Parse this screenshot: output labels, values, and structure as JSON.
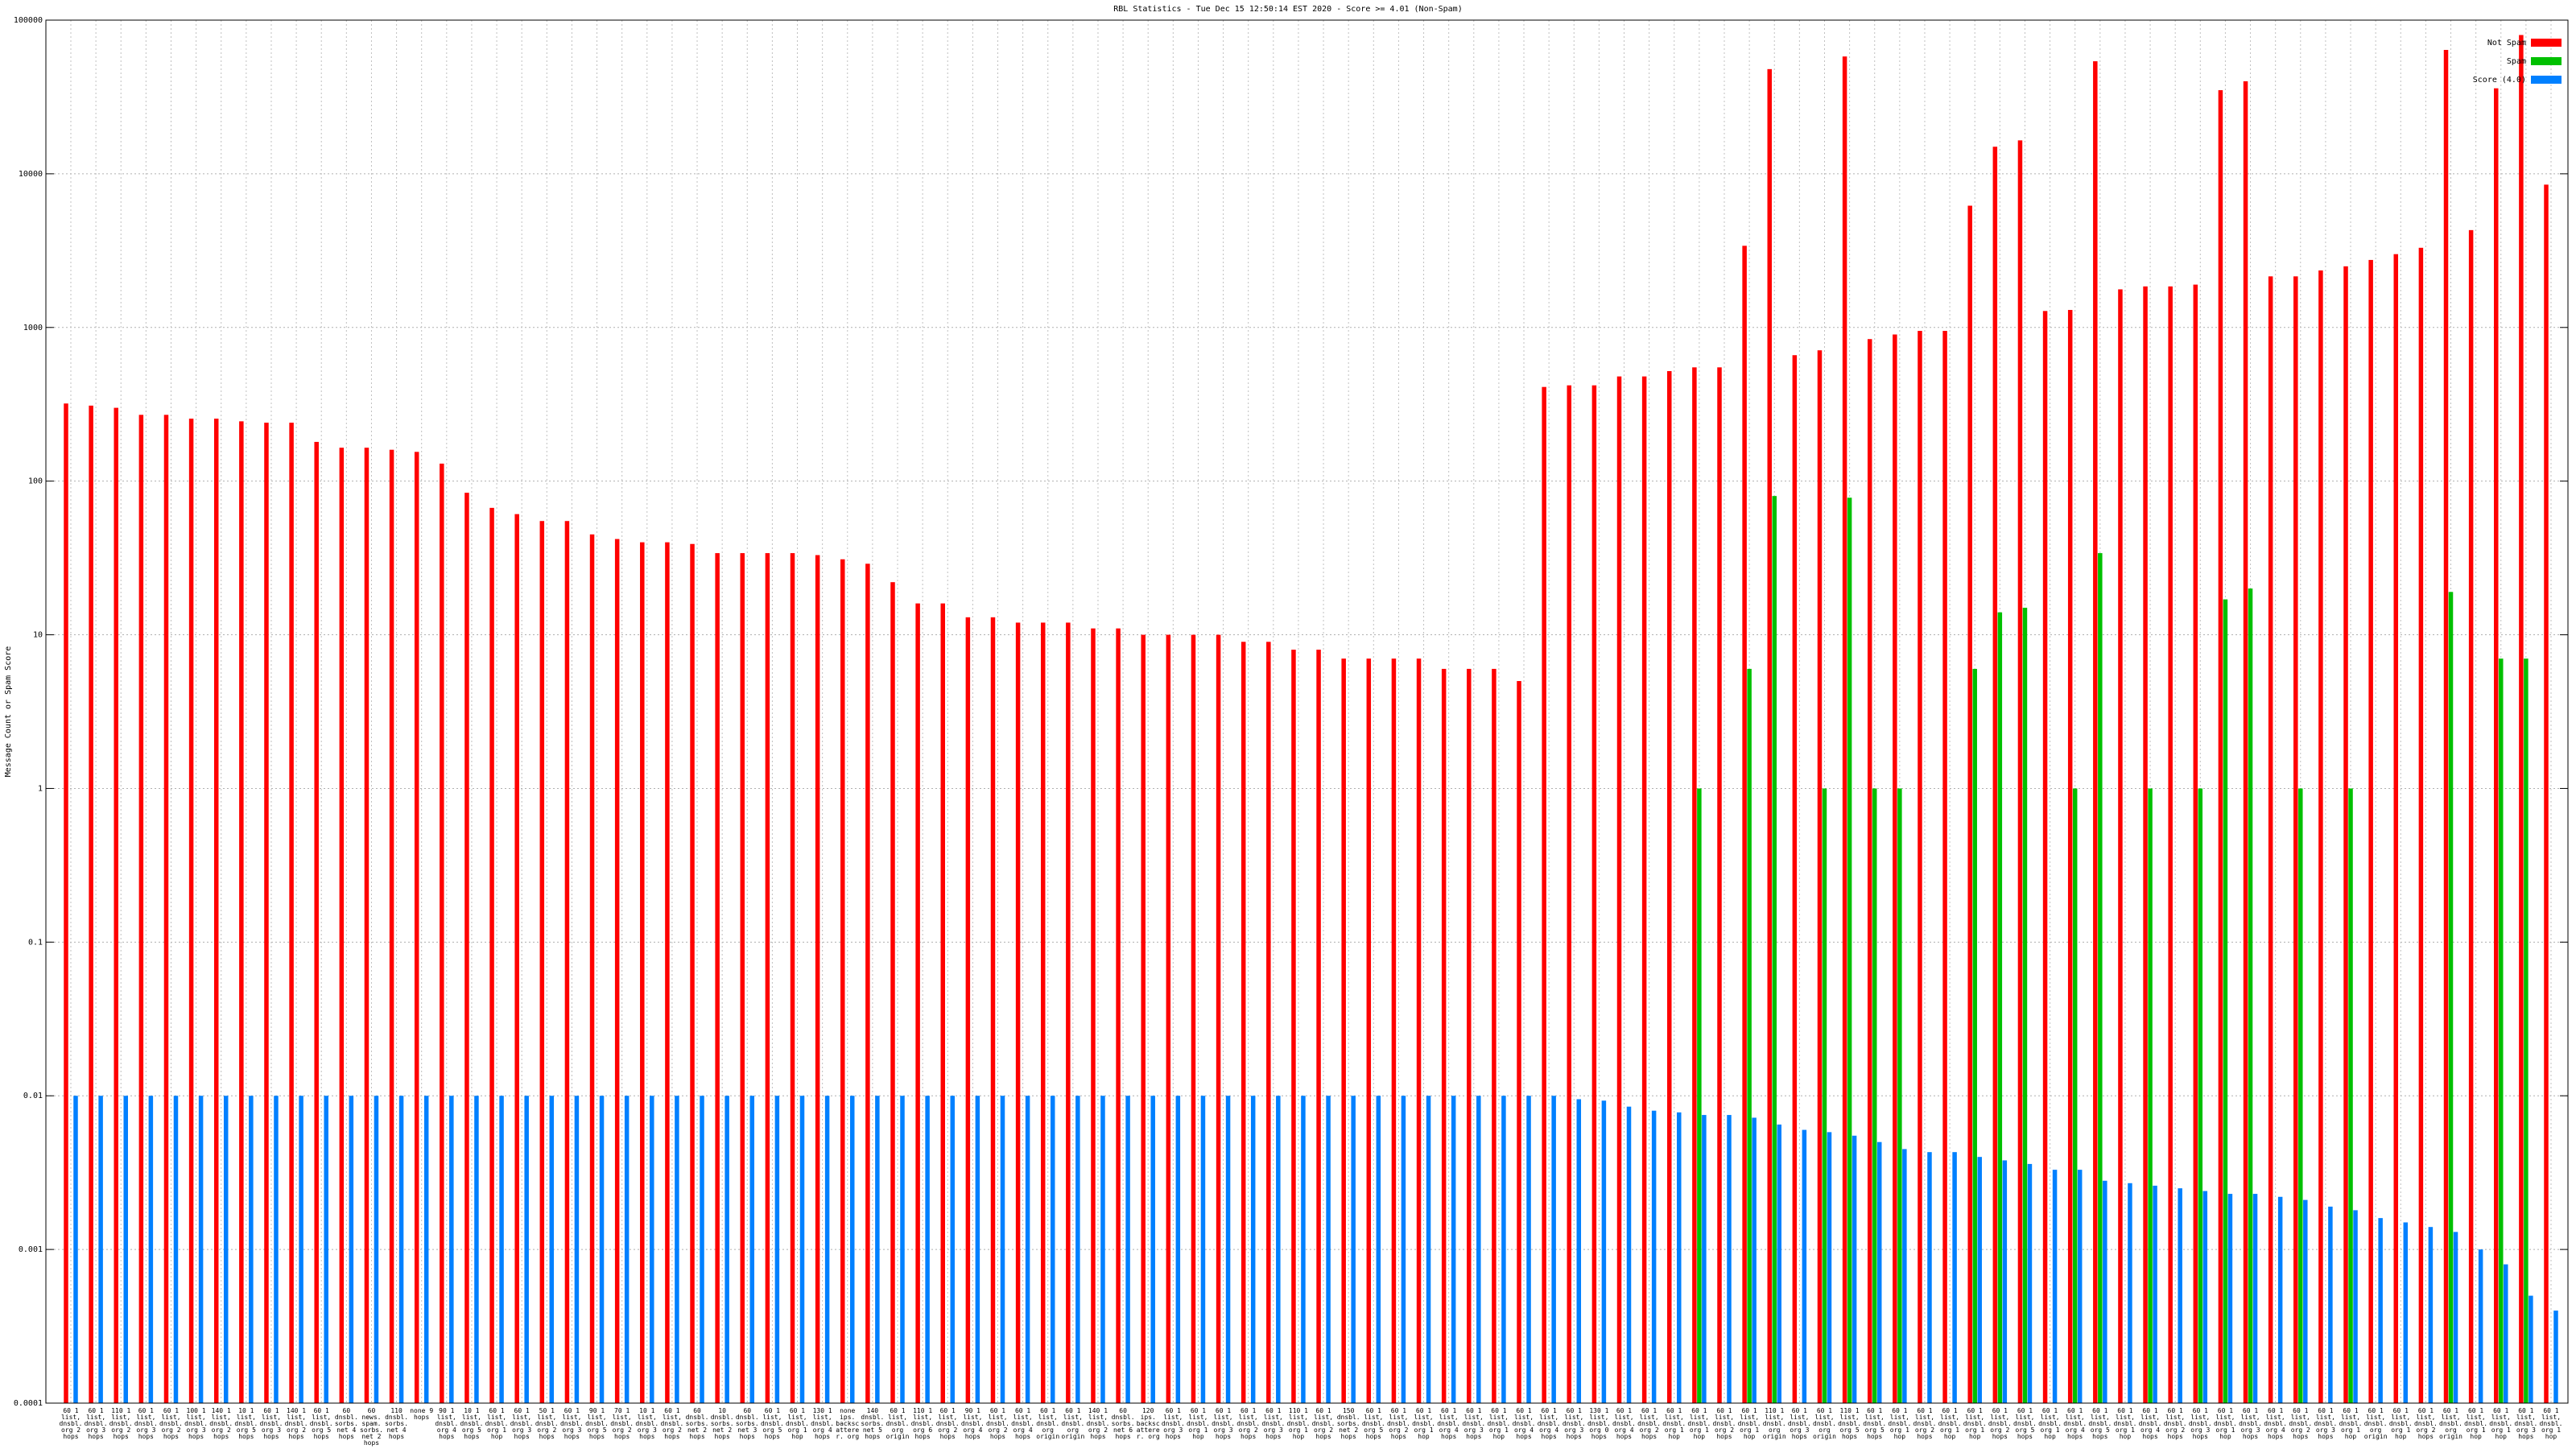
{
  "chart_data": {
    "type": "bar",
    "title": "RBL Statistics - Tue Dec 15 12:50:14 EST 2020 - Score >= 4.01 (Non-Spam)",
    "y_label": "Message Count or Spam Score",
    "log_scale": true,
    "grid": true,
    "legend": "top-right",
    "ylim": [
      0.0001,
      100000
    ],
    "yticks": [
      0.0001,
      0.001,
      0.01,
      0.1,
      1,
      10,
      100,
      1000,
      10000,
      100000
    ],
    "categories": [
      "60 1 list, dnsbl. org 2 hops",
      "60 1 list, dnsbl. org 3 hops",
      "110 1 list, dnsbl. org 2 hops",
      "60 1 list, dnsbl. org 3 hops",
      "60 1 list, dnsbl. org 2 hops",
      "100 1 list, dnsbl. org 3 hops",
      "140 1 list, dnsbl. org 2 hops",
      "10 1 list, dnsbl. org 5 hops",
      "60 1 list, dnsbl. org 3 hops",
      "140 1 list, dnsbl. org 2 hops",
      "60 1 list, dnsbl. org 5 hops",
      "60 dnsbl. sorbs. net 4 hops",
      "60 news. spam. sorbs. net 2 hops",
      "110 dnsbl. sorbs. net 4 hops",
      "none 9 hops",
      "90 1 list, dnsbl. org 4 hops",
      "10 1 list, dnsbl. org 5 hops",
      "60 1 list, dnsbl. org 1 hop",
      "60 1 list, dnsbl. org 3 hops",
      "50 1 list, dnsbl. org 2 hops",
      "60 1 list, dnsbl. org 3 hops",
      "90 1 list, dnsbl. org 5 hops",
      "70 1 list, dnsbl. org 2 hops",
      "10 1 list, dnsbl. org 3 hops",
      "60 1 list, dnsbl. org 2 hops",
      "60 dnsbl. sorbs. net 2 hops",
      "10 dnsbl. sorbs. net 2 hops",
      "60 dnsbl. sorbs. net 3 hops",
      "60 1 list, dnsbl. org 5 hops",
      "60 1 list, dnsbl. org 1 hop",
      "130 1 list, dnsbl. org 4 hops",
      "none ips. backscatterer. org",
      "140 dnsbl. sorbs. net 5 hops",
      "60 1 list, dnsbl. org origin",
      "110 1 list, dnsbl. org 6 hops",
      "60 1 list, dnsbl. org 2 hops",
      "90 1 list, dnsbl. org 4 hops",
      "60 1 list, dnsbl. org 2 hops",
      "60 1 list, dnsbl. org 4 hops",
      "60 1 list, dnsbl. org origin",
      "60 1 list, dnsbl. org origin",
      "140 1 list, dnsbl. org 2 hops",
      "60 dnsbl. sorbs. net 6 hops",
      "120 ips. backscatterer. org",
      "60 1 list, dnsbl. org 3 hops",
      "60 1 list, dnsbl. org 1 hop",
      "60 1 list, dnsbl. org 3 hops",
      "60 1 list, dnsbl. org 2 hops",
      "60 1 list, dnsbl. org 3 hops",
      "110 1 list, dnsbl. org 1 hop",
      "60 1 list, dnsbl. org 2 hops",
      "150 dnsbl. sorbs. net 2 hops",
      "60 1 list, dnsbl. org 5 hops",
      "60 1 list, dnsbl. org 2 hops",
      "60 1 list, dnsbl. org 1 hop",
      "60 1 list, dnsbl. org 4 hops",
      "60 1 list, dnsbl. org 3 hops",
      "60 1 list, dnsbl. org 1 hop",
      "60 1 list, dnsbl. org 4 hops",
      "60 1 list, dnsbl. org 4 hops",
      "60 1 list, dnsbl. org 3 hops",
      "130 1 list, dnsbl. org 0 hops",
      "60 1 list, dnsbl. org 4 hops",
      "60 1 list, dnsbl. org 2 hops",
      "60 1 list, dnsbl. org 1 hop",
      "60 1 list, dnsbl. org 1 hop",
      "60 1 list, dnsbl. org 2 hops",
      "60 1 list, dnsbl. org 1 hop",
      "110 1 list, dnsbl. org origin",
      "60 1 list, dnsbl. org 3 hops",
      "60 1 list, dnsbl. org origin",
      "110 1 list, dnsbl. org 5 hops",
      "60 1 list, dnsbl. org 5 hops",
      "60 1 list, dnsbl. org 1 hop",
      "60 1 list, dnsbl. org 2 hops",
      "60 1 list, dnsbl. org 1 hop",
      "60 1 list, dnsbl. org 1 hop",
      "60 1 list, dnsbl. org 2 hops",
      "60 1 list, dnsbl. org 5 hops",
      "60 1 list, dnsbl. org 1 hop",
      "60 1 list, dnsbl. org 4 hops",
      "60 1 list, dnsbl. org 5 hops",
      "60 1 list, dnsbl. org 1 hop",
      "60 1 list, dnsbl. org 4 hops",
      "60 1 list, dnsbl. org 2 hops",
      "60 1 list, dnsbl. org 3 hops",
      "60 1 list, dnsbl. org 1 hop",
      "60 1 list, dnsbl. org 3 hops",
      "60 1 list, dnsbl. org 4 hops",
      "60 1 list, dnsbl. org 2 hops",
      "60 1 list, dnsbl. org 3 hops",
      "60 1 list, dnsbl. org 1 hop",
      "60 1 list, dnsbl. org origin",
      "60 1 list, dnsbl. org 1 hop",
      "60 1 list, dnsbl. org 2 hops",
      "60 1 list, dnsbl. org origin",
      "60 1 list, dnsbl. org 1 hop",
      "60 1 list, dnsbl. org 1 hop",
      "60 1 list, dnsbl. org 3 hops",
      "60 1 list, dnsbl. org 1 hop"
    ],
    "series": [
      {
        "name": "Not Spam",
        "color": "#ff0000",
        "values": [
          320,
          310,
          300,
          270,
          270,
          255,
          255,
          245,
          240,
          240,
          180,
          165,
          165,
          160,
          155,
          130,
          84,
          67,
          61,
          55,
          55,
          45,
          42,
          40,
          40,
          39,
          34,
          34,
          34,
          34,
          33,
          31,
          29,
          22,
          16,
          16,
          13,
          13,
          12,
          12,
          12,
          11,
          11,
          10,
          10,
          10,
          10,
          9,
          9,
          8,
          8,
          7,
          7,
          7,
          7,
          6,
          6,
          6,
          5,
          410,
          420,
          420,
          480,
          480,
          520,
          550,
          550,
          3400,
          48000,
          660,
          710,
          58000,
          840,
          900,
          950,
          950,
          6200,
          15000,
          16500,
          1280,
          1300,
          54000,
          1770,
          1850,
          1850,
          1900,
          35000,
          40000,
          2150,
          2150,
          2350,
          2500,
          2750,
          3000,
          3300,
          64000,
          4300,
          36000,
          80000,
          8500
        ]
      },
      {
        "name": "Spam",
        "color": "#00c000",
        "values": [
          null,
          null,
          null,
          null,
          null,
          null,
          null,
          null,
          null,
          null,
          null,
          null,
          null,
          null,
          null,
          null,
          null,
          null,
          null,
          null,
          null,
          null,
          null,
          null,
          null,
          null,
          null,
          null,
          null,
          null,
          null,
          null,
          null,
          null,
          null,
          null,
          null,
          null,
          null,
          null,
          null,
          null,
          null,
          null,
          null,
          null,
          null,
          null,
          null,
          null,
          null,
          null,
          null,
          null,
          null,
          null,
          null,
          null,
          null,
          null,
          null,
          null,
          null,
          null,
          null,
          1,
          null,
          6,
          80,
          null,
          1,
          78,
          1,
          1,
          null,
          null,
          6,
          14,
          15,
          null,
          1,
          34,
          null,
          1,
          null,
          1,
          17,
          20,
          null,
          1,
          null,
          1,
          null,
          null,
          null,
          19,
          null,
          7,
          7,
          null
        ]
      },
      {
        "name": "Score (4.0)",
        "color": "#0080ff",
        "values": [
          0.01,
          0.01,
          0.01,
          0.01,
          0.01,
          0.01,
          0.01,
          0.01,
          0.01,
          0.01,
          0.01,
          0.01,
          0.01,
          0.01,
          0.01,
          0.01,
          0.01,
          0.01,
          0.01,
          0.01,
          0.01,
          0.01,
          0.01,
          0.01,
          0.01,
          0.01,
          0.01,
          0.01,
          0.01,
          0.01,
          0.01,
          0.01,
          0.01,
          0.01,
          0.01,
          0.01,
          0.01,
          0.01,
          0.01,
          0.01,
          0.01,
          0.01,
          0.01,
          0.01,
          0.01,
          0.01,
          0.01,
          0.01,
          0.01,
          0.01,
          0.01,
          0.01,
          0.01,
          0.01,
          0.01,
          0.01,
          0.01,
          0.01,
          0.01,
          0.01,
          0.0095,
          0.0093,
          0.0085,
          0.008,
          0.0078,
          0.0075,
          0.0075,
          0.0072,
          0.0065,
          0.006,
          0.0058,
          0.0055,
          0.005,
          0.0045,
          0.0043,
          0.0043,
          0.004,
          0.0038,
          0.0036,
          0.0033,
          0.0033,
          0.0028,
          0.0027,
          0.0026,
          0.0025,
          0.0024,
          0.0023,
          0.0023,
          0.0022,
          0.0021,
          0.0019,
          0.0018,
          0.0016,
          0.0015,
          0.0014,
          0.0013,
          0.001,
          0.0008,
          0.0005,
          0.0004
        ]
      }
    ]
  }
}
